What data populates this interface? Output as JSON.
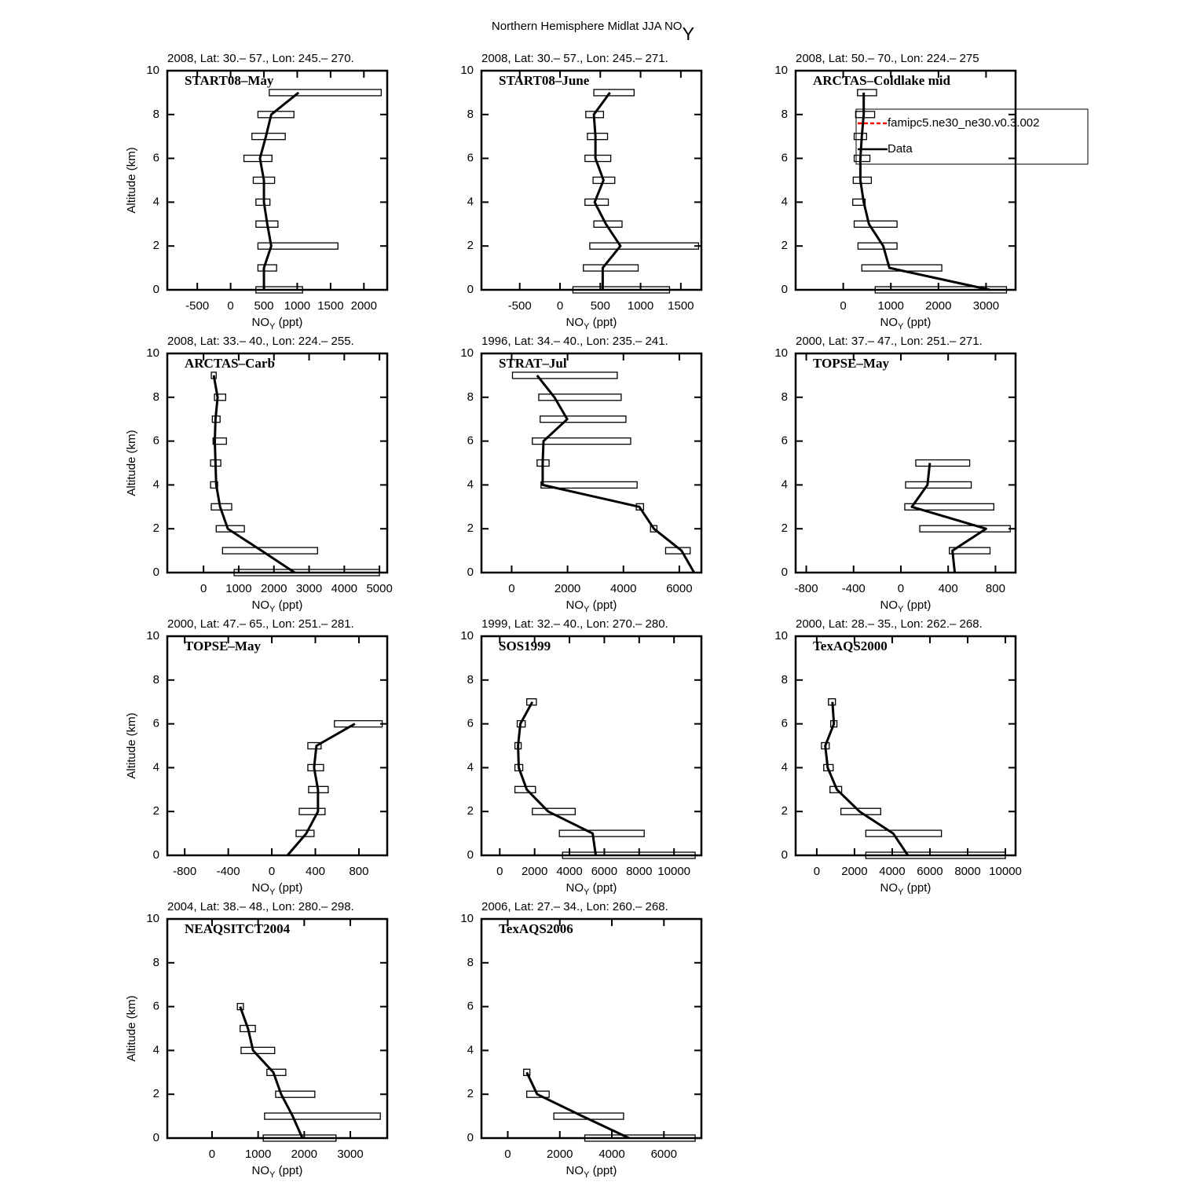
{
  "title": [
    "Northern Hemisphere Midlat JJA NO",
    "Y"
  ],
  "chart_data": [
    {
      "type": "line",
      "title": "2008, Lat:  30.– 57., Lon: 245.– 270.",
      "label": "START08–May",
      "xlabel": [
        "NO",
        "Y",
        " (ppt)"
      ],
      "ylabel": "Altitude (km)",
      "xlim": [
        -950,
        2350
      ],
      "xticks": [
        -500,
        0,
        500,
        1000,
        1500,
        2000
      ],
      "ylim": [
        0,
        10
      ],
      "yticks": [
        0,
        2,
        4,
        6,
        8,
        10
      ],
      "y": [
        0,
        1,
        2,
        3,
        4,
        5,
        6,
        7,
        8,
        9
      ],
      "series": [
        {
          "color": "#000000",
          "values": [
            500,
            500,
            610,
            550,
            500,
            500,
            440,
            530,
            610,
            1020
          ]
        }
      ],
      "boxes": {
        "low": [
          380,
          410,
          410,
          380,
          380,
          340,
          200,
          320,
          410,
          580
        ],
        "high": [
          1080,
          690,
          1610,
          710,
          590,
          660,
          620,
          820,
          950,
          2260
        ]
      }
    },
    {
      "type": "line",
      "title": "2008, Lat:  30.– 57., Lon: 245.– 271.",
      "label": "START08–June",
      "xlabel": [
        "NO",
        "Y",
        " (ppt)"
      ],
      "xlim": [
        -975,
        1755
      ],
      "xticks": [
        -500,
        0,
        500,
        1000,
        1500
      ],
      "ylim": [
        0,
        10
      ],
      "yticks": [
        0,
        2,
        4,
        6,
        8,
        10
      ],
      "y": [
        0,
        1,
        2,
        3,
        4,
        5,
        6,
        7,
        8,
        9
      ],
      "series": [
        {
          "color": "#000000",
          "values": [
            530,
            530,
            750,
            570,
            430,
            540,
            440,
            440,
            420,
            620
          ]
        }
      ],
      "boxes": {
        "low": [
          160,
          290,
          370,
          420,
          310,
          410,
          310,
          340,
          320,
          420
        ],
        "high": [
          1360,
          970,
          1720,
          770,
          600,
          680,
          630,
          590,
          540,
          920
        ]
      }
    },
    {
      "type": "line",
      "title": "2008, Lat:  50.– 70., Lon: 224.– 275",
      "label": "ARCTAS–Coldlake mid",
      "xlabel": [
        "NO",
        "Y",
        " (ppt)"
      ],
      "xlim": [
        -1000,
        3620
      ],
      "xticks": [
        0,
        1000,
        2000,
        3000
      ],
      "ylim": [
        0,
        10
      ],
      "yticks": [
        0,
        2,
        4,
        6,
        8,
        10
      ],
      "y": [
        0,
        1,
        2,
        3,
        4,
        5,
        6,
        7,
        8,
        9
      ],
      "series": [
        {
          "color": "#000000",
          "values": [
            3080,
            970,
            840,
            540,
            430,
            360,
            360,
            390,
            430,
            430
          ]
        }
      ],
      "boxes": {
        "low": [
          670,
          390,
          310,
          230,
          200,
          210,
          230,
          230,
          260,
          300
        ],
        "high": [
          3430,
          2070,
          1130,
          1130,
          460,
          590,
          560,
          490,
          660,
          700
        ]
      },
      "legend": [
        {
          "name": "famipc5.ne30_ne30.v0.3.002",
          "color": "#ff0000",
          "dash": "5,3"
        },
        {
          "name": "Data",
          "color": "#000000"
        }
      ]
    },
    {
      "type": "line",
      "title": "2008, Lat:  33.– 40., Lon: 224.– 255.",
      "label": "ARCTAS–Carb",
      "xlabel": [
        "NO",
        "Y",
        " (ppt)"
      ],
      "ylabel": "Altitude (km)",
      "xlim": [
        -1030,
        5220
      ],
      "xticks": [
        0,
        1000,
        2000,
        3000,
        4000,
        5000
      ],
      "ylim": [
        0,
        10
      ],
      "yticks": [
        0,
        2,
        4,
        6,
        8,
        10
      ],
      "y": [
        0,
        1,
        2,
        3,
        4,
        5,
        6,
        7,
        8,
        9
      ],
      "series": [
        {
          "color": "#000000",
          "values": [
            2590,
            1650,
            690,
            470,
            360,
            340,
            320,
            340,
            400,
            290
          ]
        }
      ],
      "boxes": {
        "low": [
          870,
          540,
          360,
          220,
          200,
          200,
          270,
          250,
          310,
          220
        ],
        "high": [
          5000,
          3240,
          1160,
          800,
          400,
          490,
          650,
          470,
          630,
          360
        ]
      }
    },
    {
      "type": "line",
      "title": "1996, Lat: 34.– 40., Lon: 235.– 241.",
      "label": "STRAT–Jul",
      "xlabel": [
        "NO",
        "Y",
        " (ppt)"
      ],
      "xlim": [
        -1080,
        6790
      ],
      "xticks": [
        0,
        2000,
        4000,
        6000
      ],
      "ylim": [
        0,
        10
      ],
      "yticks": [
        0,
        2,
        4,
        6,
        8,
        10
      ],
      "y": [
        0,
        1,
        2,
        3,
        4,
        5,
        6,
        7,
        8,
        9
      ],
      "series": [
        {
          "color": "#000000",
          "values": [
            6530,
            6080,
            5090,
            4570,
            1110,
            1110,
            1140,
            1990,
            1530,
            910
          ]
        }
      ],
      "boxes": {
        "low": [
          null,
          5510,
          4970,
          4460,
          1050,
          910,
          740,
          1020,
          970,
          30
        ],
        "high": [
          null,
          6390,
          5200,
          4720,
          4490,
          1340,
          4260,
          4090,
          3920,
          3780
        ]
      }
    },
    {
      "type": "line",
      "title": "2000, Lat: 37.– 47., Lon: 251.– 271.",
      "label": "TOPSE–May",
      "xlabel": [
        "NO",
        "Y",
        " (ppt)"
      ],
      "xlim": [
        -890,
        970
      ],
      "xticks": [
        -800,
        -400,
        0,
        400,
        800
      ],
      "ylim": [
        0,
        10
      ],
      "yticks": [
        0,
        2,
        4,
        6,
        8,
        10
      ],
      "y": [
        0,
        1,
        2,
        3,
        4,
        5
      ],
      "series": [
        {
          "color": "#000000",
          "values": [
            456,
            436,
            720,
            93,
            225,
            245
          ]
        }
      ],
      "boxes": {
        "low": [
          null,
          410,
          160,
          33,
          40,
          126
        ],
        "high": [
          null,
          754,
          925,
          786,
          595,
          582
        ]
      }
    },
    {
      "type": "line",
      "title": "2000, Lat: 47.– 65., Lon: 251.– 281.",
      "label": "TOPSE–May",
      "xlabel": [
        "NO",
        "Y",
        " (ppt)"
      ],
      "ylabel": "Altitude (km)",
      "xlim": [
        -960,
        1060
      ],
      "xticks": [
        -800,
        -400,
        0,
        400,
        800
      ],
      "ylim": [
        0,
        10
      ],
      "yticks": [
        0,
        2,
        4,
        6,
        8,
        10
      ],
      "y": [
        0,
        1,
        2,
        3,
        4,
        5,
        6
      ],
      "series": [
        {
          "color": "#000000",
          "values": [
            144,
            317,
            424,
            424,
            388,
            410,
            763
          ]
        }
      ],
      "boxes": {
        "low": [
          null,
          223,
          252,
          338,
          331,
          331,
          575
        ],
        "high": [
          null,
          388,
          489,
          518,
          475,
          453,
          1014
        ]
      }
    },
    {
      "type": "line",
      "title": "1999, Lat: 32.– 40., Lon: 270.– 280.",
      "label": "SOS1999",
      "xlabel": [
        "NO",
        "Y",
        " (ppt)"
      ],
      "xlim": [
        -1050,
        11570
      ],
      "xticks": [
        0,
        2000,
        4000,
        6000,
        8000,
        10000
      ],
      "ylim": [
        0,
        10
      ],
      "yticks": [
        0,
        2,
        4,
        6,
        8,
        10
      ],
      "y": [
        0,
        1,
        2,
        3,
        4,
        5,
        6,
        7
      ],
      "series": [
        {
          "color": "#000000",
          "values": [
            5510,
            5330,
            2780,
            1550,
            1090,
            1050,
            1180,
            1870
          ]
        }
      ],
      "boxes": {
        "low": [
          3600,
          3420,
          1870,
          870,
          870,
          870,
          1000,
          1550
        ],
        "high": [
          11210,
          8290,
          4330,
          2050,
          1320,
          1230,
          1460,
          2100
        ]
      }
    },
    {
      "type": "line",
      "title": "2000, Lat: 28.– 35., Lon: 262.– 268.",
      "label": "TexAQS2000",
      "xlabel": [
        "NO",
        "Y",
        " (ppt)"
      ],
      "xlim": [
        -1120,
        10540
      ],
      "xticks": [
        0,
        2000,
        4000,
        6000,
        8000,
        10000
      ],
      "ylim": [
        0,
        10
      ],
      "yticks": [
        0,
        2,
        4,
        6,
        8,
        10
      ],
      "y": [
        0,
        1,
        2,
        3,
        4,
        5,
        6,
        7
      ],
      "series": [
        {
          "color": "#000000",
          "values": [
            4830,
            4050,
            2270,
            1070,
            580,
            450,
            910,
            830
          ]
        }
      ],
      "boxes": {
        "low": [
          2600,
          2600,
          1280,
          700,
          370,
          250,
          740,
          620
        ],
        "high": [
          10000,
          6610,
          3390,
          1320,
          870,
          660,
          1070,
          990
        ]
      }
    },
    {
      "type": "line",
      "title": "2004, Lat: 38.– 48., Lon: 280.– 298.",
      "label": "NEAQSITCT2004",
      "xlabel": [
        "NO",
        "Y",
        " (ppt)"
      ],
      "ylabel": "Altitude (km)",
      "xlim": [
        -970,
        3800
      ],
      "xticks": [
        0,
        1000,
        2000,
        3000
      ],
      "ylim": [
        0,
        10
      ],
      "yticks": [
        0,
        2,
        4,
        6,
        8,
        10
      ],
      "y": [
        0,
        1,
        2,
        3,
        4,
        5,
        6
      ],
      "series": [
        {
          "color": "#000000",
          "values": [
            1960,
            1750,
            1500,
            1330,
            890,
            780,
            610
          ]
        }
      ],
      "boxes": {
        "low": [
          1110,
          1140,
          1380,
          1190,
          630,
          610,
          550
        ],
        "high": [
          2690,
          3650,
          2230,
          1600,
          1360,
          940,
          680
        ]
      }
    },
    {
      "type": "line",
      "title": "2006, Lat: 27.– 34., Lon: 260.– 268.",
      "label": "TexAQS2006",
      "xlabel": [
        "NO",
        "Y",
        " (ppt)"
      ],
      "xlim": [
        -1010,
        7440
      ],
      "xticks": [
        0,
        2000,
        4000,
        6000
      ],
      "ylim": [
        0,
        10
      ],
      "yticks": [
        0,
        2,
        4,
        6,
        8,
        10
      ],
      "y": [
        0,
        1,
        2,
        3
      ],
      "series": [
        {
          "color": "#000000",
          "values": [
            4660,
            2870,
            1130,
            730
          ]
        }
      ],
      "boxes": {
        "low": [
          2960,
          1770,
          730,
          610
        ],
        "high": [
          7200,
          4450,
          1590,
          850
        ]
      }
    }
  ]
}
